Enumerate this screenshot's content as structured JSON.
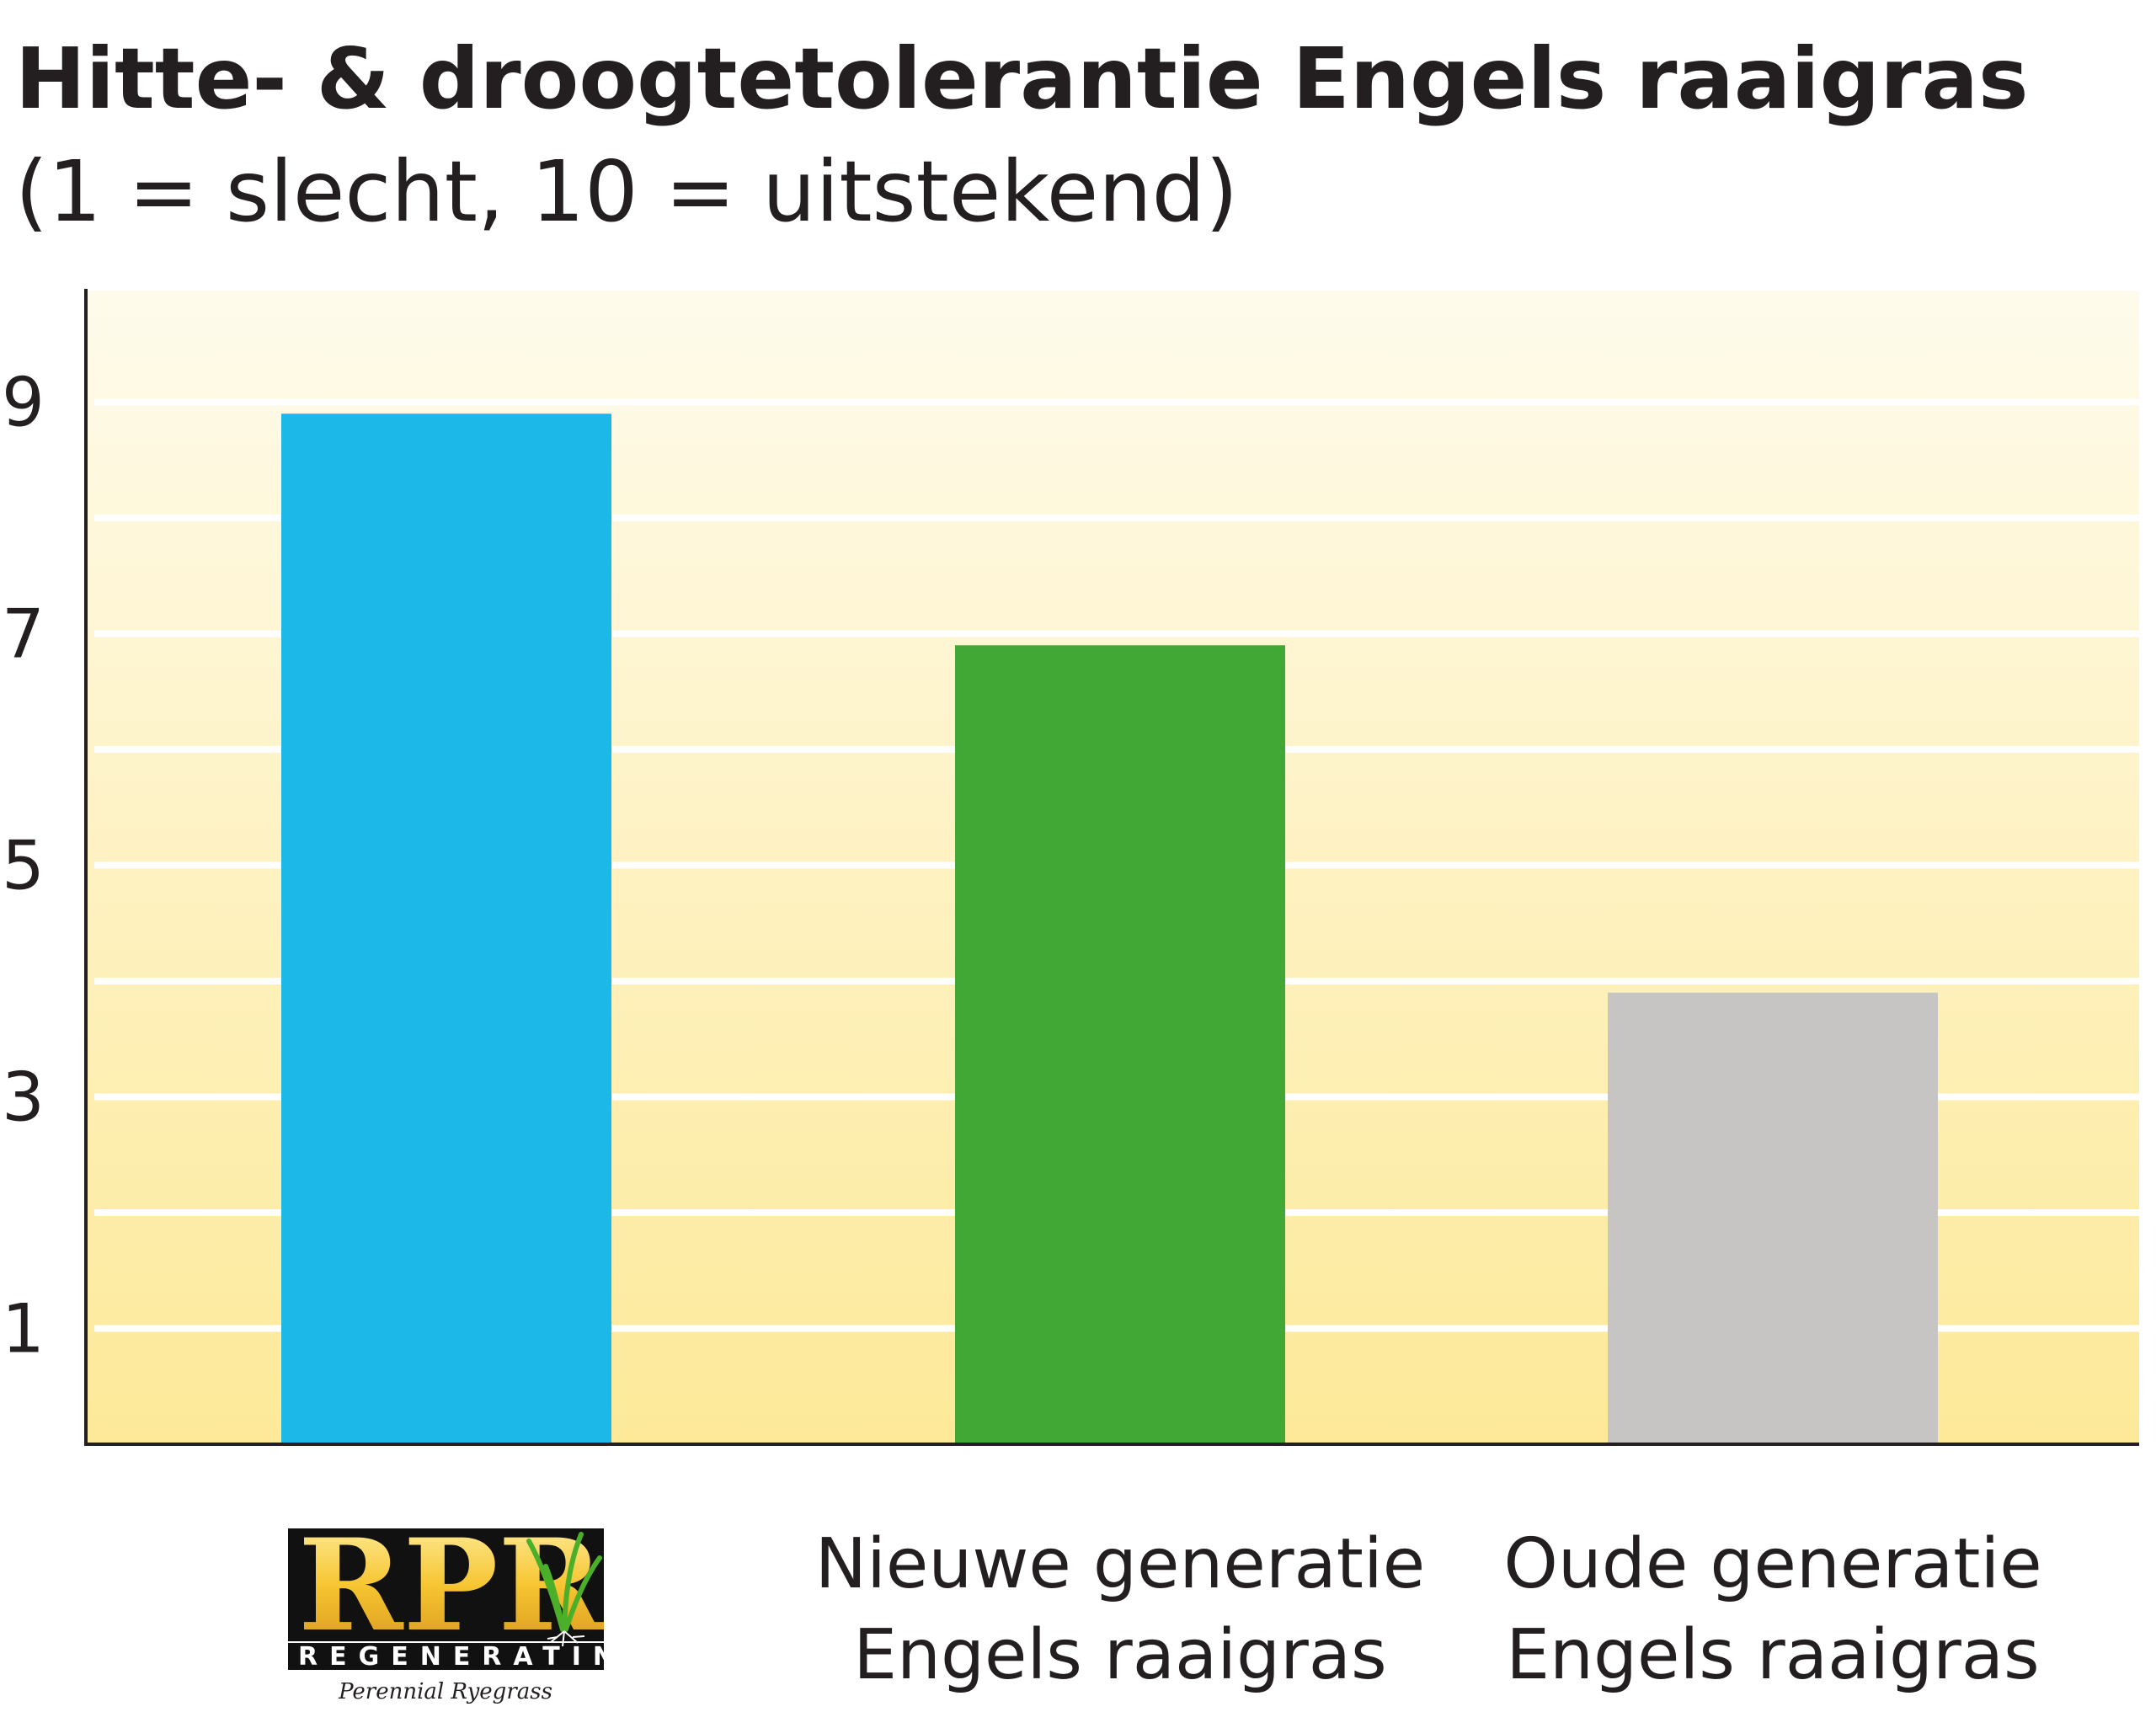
{
  "chart_data": {
    "type": "bar",
    "title": "Hitte- & droogtetolerantie Engels raaigras",
    "subtitle": "(1 = slecht, 10 = uitstekend)",
    "xlabel": "",
    "ylabel": "",
    "ylim": [
      0,
      10
    ],
    "yticks": [
      1,
      3,
      5,
      7,
      9
    ],
    "grid": true,
    "categories": [
      {
        "lines": [],
        "logo": {
          "main": "RPR",
          "sub": "REGENERATING",
          "tag": "Perennial Ryegrass"
        }
      },
      {
        "lines": [
          "Nieuwe generatie",
          "Engels raaigras"
        ]
      },
      {
        "lines": [
          "Oude generatie",
          "Engels raaigras"
        ]
      }
    ],
    "values": [
      8.9,
      6.9,
      3.9
    ],
    "colors": [
      "#1bb8e8",
      "#41a735",
      "#c6c5c3"
    ]
  },
  "colors": {
    "plot_top": "#fefbec",
    "plot_bottom": "#fde998",
    "gridline": "#ffffff",
    "axis": "#231f20",
    "text": "#231f20",
    "logo_bg": "#111111",
    "logo_gold": "#f6c531"
  }
}
